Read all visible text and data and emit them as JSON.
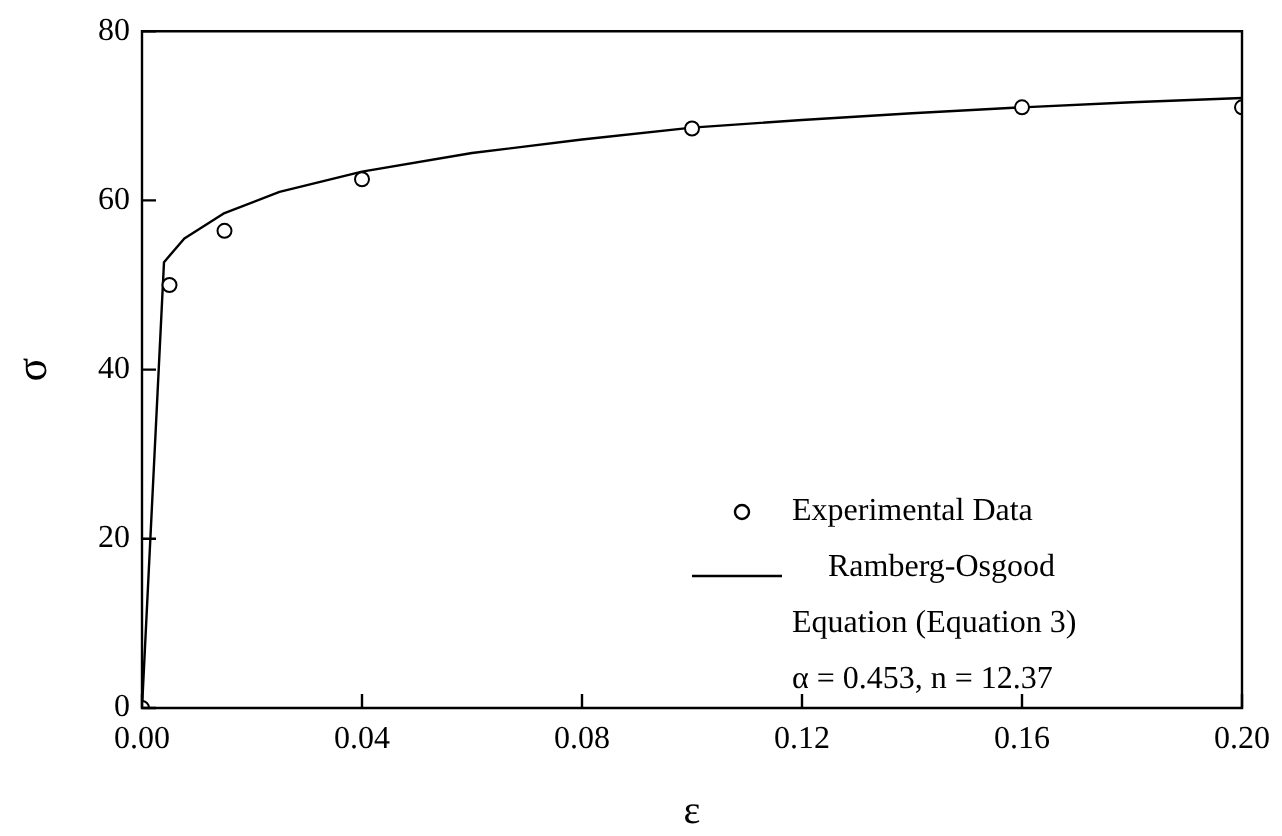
{
  "chart_data": {
    "type": "scatter",
    "xlabel": "ε",
    "ylabel": "σ",
    "xlim": [
      0,
      0.2
    ],
    "xticks": [
      {
        "value": 0,
        "label": "0.00"
      },
      {
        "value": 0.04,
        "label": "0.04"
      },
      {
        "value": 0.08,
        "label": "0.08"
      },
      {
        "value": 0.12,
        "label": "0.12"
      },
      {
        "value": 0.16,
        "label": "0.16"
      },
      {
        "value": 0.2,
        "label": "0.20"
      }
    ],
    "ylim": [
      0,
      80
    ],
    "yticks": [
      0,
      20,
      40,
      60,
      80
    ],
    "grid": false,
    "legend": "bottom right",
    "annotations": [
      "α = 0.453, n = 12.37"
    ],
    "series": [
      {
        "name": "Experimental Data",
        "type": "scatter",
        "marker": "circle",
        "color": "#000000",
        "x": [
          0,
          0.005,
          0.015,
          0.04,
          0.1,
          0.16,
          0.2
        ],
        "values": [
          0,
          50,
          56.4,
          62.5,
          68.5,
          71,
          71
        ]
      },
      {
        "name": "Ramberg-Osgood Equation (Equation 3)",
        "type": "line",
        "marker": "none",
        "line_style": "solid",
        "color": "#000000",
        "x": [
          0,
          0.004,
          0.0077,
          0.015,
          0.025,
          0.04,
          0.06,
          0.08,
          0.1,
          0.12,
          0.14,
          0.16,
          0.18,
          0.2
        ],
        "values": [
          0,
          52.7,
          55.5,
          58.5,
          61,
          63.4,
          65.6,
          67.2,
          68.6,
          69.5,
          70.3,
          71,
          71.6,
          72.1
        ]
      }
    ]
  }
}
